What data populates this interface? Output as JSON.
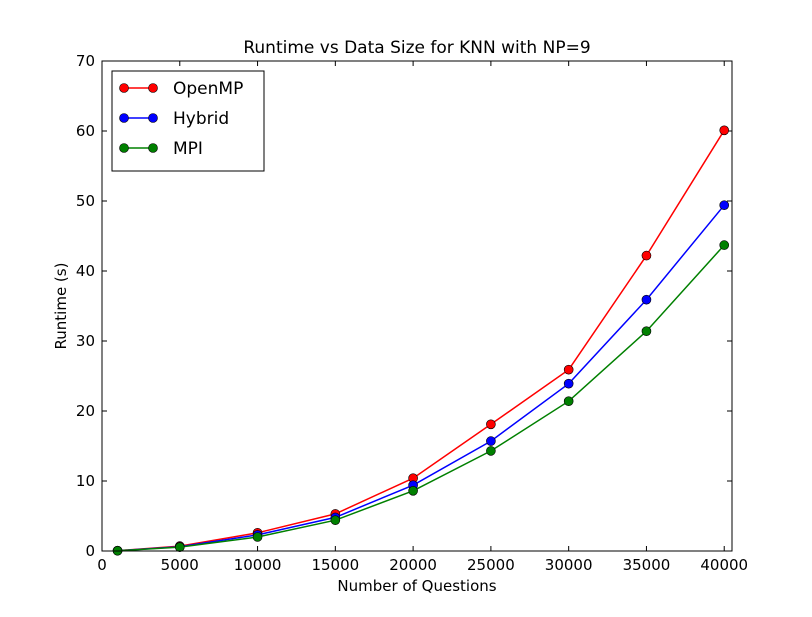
{
  "chart_data": {
    "type": "line",
    "title": "Runtime vs Data Size for KNN with NP=9",
    "xlabel": "Number of Questions",
    "ylabel": "Runtime (s)",
    "xlim": [
      0,
      40500
    ],
    "ylim": [
      0,
      70
    ],
    "xticks": [
      0,
      5000,
      10000,
      15000,
      20000,
      25000,
      30000,
      35000,
      40000
    ],
    "yticks": [
      0,
      10,
      20,
      30,
      40,
      50,
      60,
      70
    ],
    "grid": false,
    "legend_position": "upper-left",
    "x": [
      1000,
      5000,
      10000,
      15000,
      20000,
      25000,
      30000,
      35000,
      40000
    ],
    "series": [
      {
        "name": "OpenMP",
        "color": "#ff0000",
        "values": [
          0.05,
          0.7,
          2.6,
          5.3,
          10.4,
          18.1,
          25.9,
          42.2,
          60.1
        ]
      },
      {
        "name": "Hybrid",
        "color": "#0000ff",
        "values": [
          0.04,
          0.6,
          2.3,
          4.8,
          9.4,
          15.7,
          23.9,
          35.9,
          49.4
        ]
      },
      {
        "name": "MPI",
        "color": "#008000",
        "values": [
          0.03,
          0.55,
          2.0,
          4.4,
          8.6,
          14.3,
          21.4,
          31.4,
          43.7
        ]
      }
    ]
  }
}
